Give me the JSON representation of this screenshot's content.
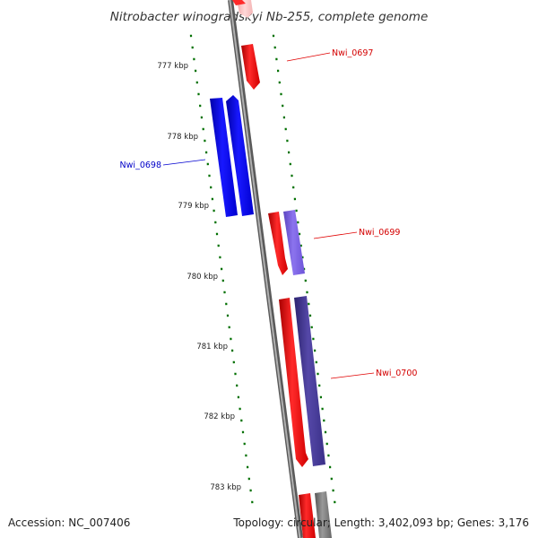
{
  "title": "Nitrobacter winogradskyi Nb-255, complete genome",
  "footer": {
    "accession": "Accession: NC_007406",
    "summary": "Topology: circular; Length: 3,402,093 bp; Genes: 3,176"
  },
  "colors": {
    "backbone": "#8a8a8a",
    "tick": "#007000",
    "red_gene": "#ff1414",
    "blue_gene": "#0a0aff",
    "lavender_gene": "#7b62e0",
    "navy_gene": "#4a3f98",
    "gray_gene": "#777777",
    "pink_gene": "#ffc4c4"
  },
  "scale_labels": [
    "777 kbp",
    "778 kbp",
    "779 kbp",
    "780 kbp",
    "781 kbp",
    "782 kbp",
    "783 kbp"
  ],
  "gene_labels": [
    {
      "id": "Nwi_0697",
      "text": "Nwi_0697",
      "color": "#d40000"
    },
    {
      "id": "Nwi_0698",
      "text": "Nwi_0698",
      "color": "#0000c8"
    },
    {
      "id": "Nwi_0699",
      "text": "Nwi_0699",
      "color": "#d40000"
    },
    {
      "id": "Nwi_0700",
      "text": "Nwi_0700",
      "color": "#d40000"
    }
  ]
}
